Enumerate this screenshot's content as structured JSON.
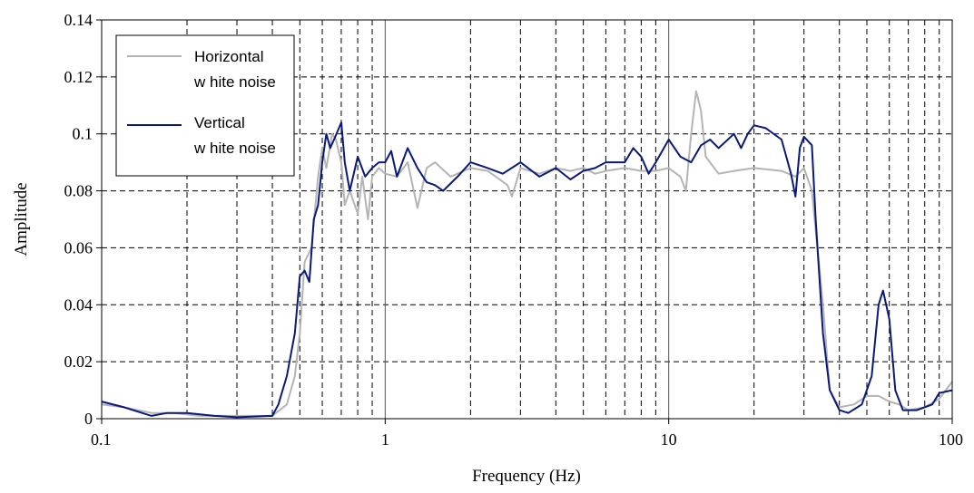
{
  "chart_data": {
    "type": "line",
    "xlabel": "Frequency (Hz)",
    "ylabel": "Amplitude",
    "x_scale": "log",
    "xlim": [
      0.1,
      100
    ],
    "ylim": [
      0,
      0.14
    ],
    "x_ticks": [
      0.1,
      1,
      10,
      100
    ],
    "x_tick_labels": [
      "0.1",
      "1",
      "10",
      "100"
    ],
    "y_ticks": [
      0,
      0.02,
      0.04,
      0.06,
      0.08,
      0.1,
      0.12,
      0.14
    ],
    "y_tick_labels": [
      "0",
      "0.02",
      "0.04",
      "0.06",
      "0.08",
      "0.1",
      "0.12",
      "0.14"
    ],
    "grid": true,
    "legend_position": "top-left",
    "series": [
      {
        "name": "Horizontal white noise",
        "legend_lines": [
          "Horizontal",
          "w hite noise"
        ],
        "color": "#b4b4b4",
        "points": [
          [
            0.1,
            0.005
          ],
          [
            0.12,
            0.004
          ],
          [
            0.15,
            0.002
          ],
          [
            0.18,
            0.002
          ],
          [
            0.22,
            0.001
          ],
          [
            0.3,
            0.001
          ],
          [
            0.4,
            0.001
          ],
          [
            0.45,
            0.005
          ],
          [
            0.48,
            0.015
          ],
          [
            0.5,
            0.03
          ],
          [
            0.52,
            0.055
          ],
          [
            0.55,
            0.06
          ],
          [
            0.58,
            0.085
          ],
          [
            0.6,
            0.095
          ],
          [
            0.62,
            0.088
          ],
          [
            0.65,
            0.1
          ],
          [
            0.67,
            0.098
          ],
          [
            0.7,
            0.09
          ],
          [
            0.72,
            0.075
          ],
          [
            0.75,
            0.08
          ],
          [
            0.8,
            0.072
          ],
          [
            0.83,
            0.085
          ],
          [
            0.87,
            0.07
          ],
          [
            0.9,
            0.085
          ],
          [
            0.95,
            0.088
          ],
          [
            1.0,
            0.086
          ],
          [
            1.1,
            0.085
          ],
          [
            1.2,
            0.09
          ],
          [
            1.3,
            0.074
          ],
          [
            1.4,
            0.088
          ],
          [
            1.5,
            0.09
          ],
          [
            1.7,
            0.085
          ],
          [
            2.0,
            0.088
          ],
          [
            2.3,
            0.087
          ],
          [
            2.7,
            0.082
          ],
          [
            2.8,
            0.078
          ],
          [
            3.0,
            0.088
          ],
          [
            3.5,
            0.086
          ],
          [
            4.0,
            0.088
          ],
          [
            4.5,
            0.087
          ],
          [
            5.0,
            0.088
          ],
          [
            5.5,
            0.086
          ],
          [
            6.0,
            0.087
          ],
          [
            7.0,
            0.088
          ],
          [
            8.0,
            0.087
          ],
          [
            9.0,
            0.087
          ],
          [
            10.0,
            0.088
          ],
          [
            11.0,
            0.085
          ],
          [
            11.5,
            0.08
          ],
          [
            12.0,
            0.1
          ],
          [
            12.5,
            0.115
          ],
          [
            13.0,
            0.108
          ],
          [
            13.5,
            0.092
          ],
          [
            15.0,
            0.086
          ],
          [
            17.0,
            0.087
          ],
          [
            20.0,
            0.088
          ],
          [
            25.0,
            0.087
          ],
          [
            28.0,
            0.085
          ],
          [
            30.0,
            0.088
          ],
          [
            32.0,
            0.08
          ],
          [
            35.0,
            0.04
          ],
          [
            37.0,
            0.01
          ],
          [
            40.0,
            0.004
          ],
          [
            45.0,
            0.005
          ],
          [
            50.0,
            0.008
          ],
          [
            55.0,
            0.008
          ],
          [
            60.0,
            0.006
          ],
          [
            65.0,
            0.005
          ],
          [
            70.0,
            0.003
          ],
          [
            80.0,
            0.004
          ],
          [
            90.0,
            0.007
          ],
          [
            100.0,
            0.013
          ]
        ]
      },
      {
        "name": "Vertical white noise",
        "legend_lines": [
          "Vertical",
          "w hite noise"
        ],
        "color": "#0a1a7a",
        "points": [
          [
            0.1,
            0.006
          ],
          [
            0.12,
            0.004
          ],
          [
            0.15,
            0.001
          ],
          [
            0.17,
            0.002
          ],
          [
            0.2,
            0.002
          ],
          [
            0.25,
            0.001
          ],
          [
            0.3,
            0.0005
          ],
          [
            0.4,
            0.001
          ],
          [
            0.42,
            0.005
          ],
          [
            0.45,
            0.015
          ],
          [
            0.48,
            0.03
          ],
          [
            0.5,
            0.05
          ],
          [
            0.52,
            0.052
          ],
          [
            0.54,
            0.048
          ],
          [
            0.56,
            0.07
          ],
          [
            0.58,
            0.075
          ],
          [
            0.6,
            0.09
          ],
          [
            0.62,
            0.1
          ],
          [
            0.64,
            0.095
          ],
          [
            0.66,
            0.098
          ],
          [
            0.7,
            0.104
          ],
          [
            0.72,
            0.09
          ],
          [
            0.75,
            0.08
          ],
          [
            0.8,
            0.092
          ],
          [
            0.85,
            0.085
          ],
          [
            0.9,
            0.088
          ],
          [
            0.95,
            0.09
          ],
          [
            1.0,
            0.09
          ],
          [
            1.05,
            0.094
          ],
          [
            1.1,
            0.085
          ],
          [
            1.2,
            0.095
          ],
          [
            1.3,
            0.088
          ],
          [
            1.4,
            0.083
          ],
          [
            1.5,
            0.082
          ],
          [
            1.6,
            0.08
          ],
          [
            1.8,
            0.085
          ],
          [
            2.0,
            0.09
          ],
          [
            2.3,
            0.088
          ],
          [
            2.6,
            0.086
          ],
          [
            3.0,
            0.09
          ],
          [
            3.5,
            0.085
          ],
          [
            4.0,
            0.088
          ],
          [
            4.5,
            0.084
          ],
          [
            5.0,
            0.087
          ],
          [
            5.5,
            0.088
          ],
          [
            6.0,
            0.09
          ],
          [
            7.0,
            0.09
          ],
          [
            7.5,
            0.095
          ],
          [
            8.0,
            0.092
          ],
          [
            8.5,
            0.086
          ],
          [
            9.0,
            0.09
          ],
          [
            10.0,
            0.098
          ],
          [
            11.0,
            0.092
          ],
          [
            12.0,
            0.09
          ],
          [
            13.0,
            0.096
          ],
          [
            14.0,
            0.098
          ],
          [
            15.0,
            0.095
          ],
          [
            17.0,
            0.1
          ],
          [
            18.0,
            0.095
          ],
          [
            19.0,
            0.1
          ],
          [
            20.0,
            0.103
          ],
          [
            22.0,
            0.102
          ],
          [
            25.0,
            0.098
          ],
          [
            27.0,
            0.086
          ],
          [
            28.0,
            0.078
          ],
          [
            29.0,
            0.095
          ],
          [
            30.0,
            0.099
          ],
          [
            32.0,
            0.096
          ],
          [
            33.0,
            0.07
          ],
          [
            35.0,
            0.03
          ],
          [
            37.0,
            0.01
          ],
          [
            40.0,
            0.003
          ],
          [
            43.0,
            0.002
          ],
          [
            48.0,
            0.005
          ],
          [
            52.0,
            0.015
          ],
          [
            55.0,
            0.04
          ],
          [
            57.0,
            0.045
          ],
          [
            60.0,
            0.035
          ],
          [
            63.0,
            0.01
          ],
          [
            67.0,
            0.003
          ],
          [
            75.0,
            0.003
          ],
          [
            85.0,
            0.005
          ],
          [
            90.0,
            0.009
          ],
          [
            100.0,
            0.01
          ]
        ]
      }
    ]
  }
}
